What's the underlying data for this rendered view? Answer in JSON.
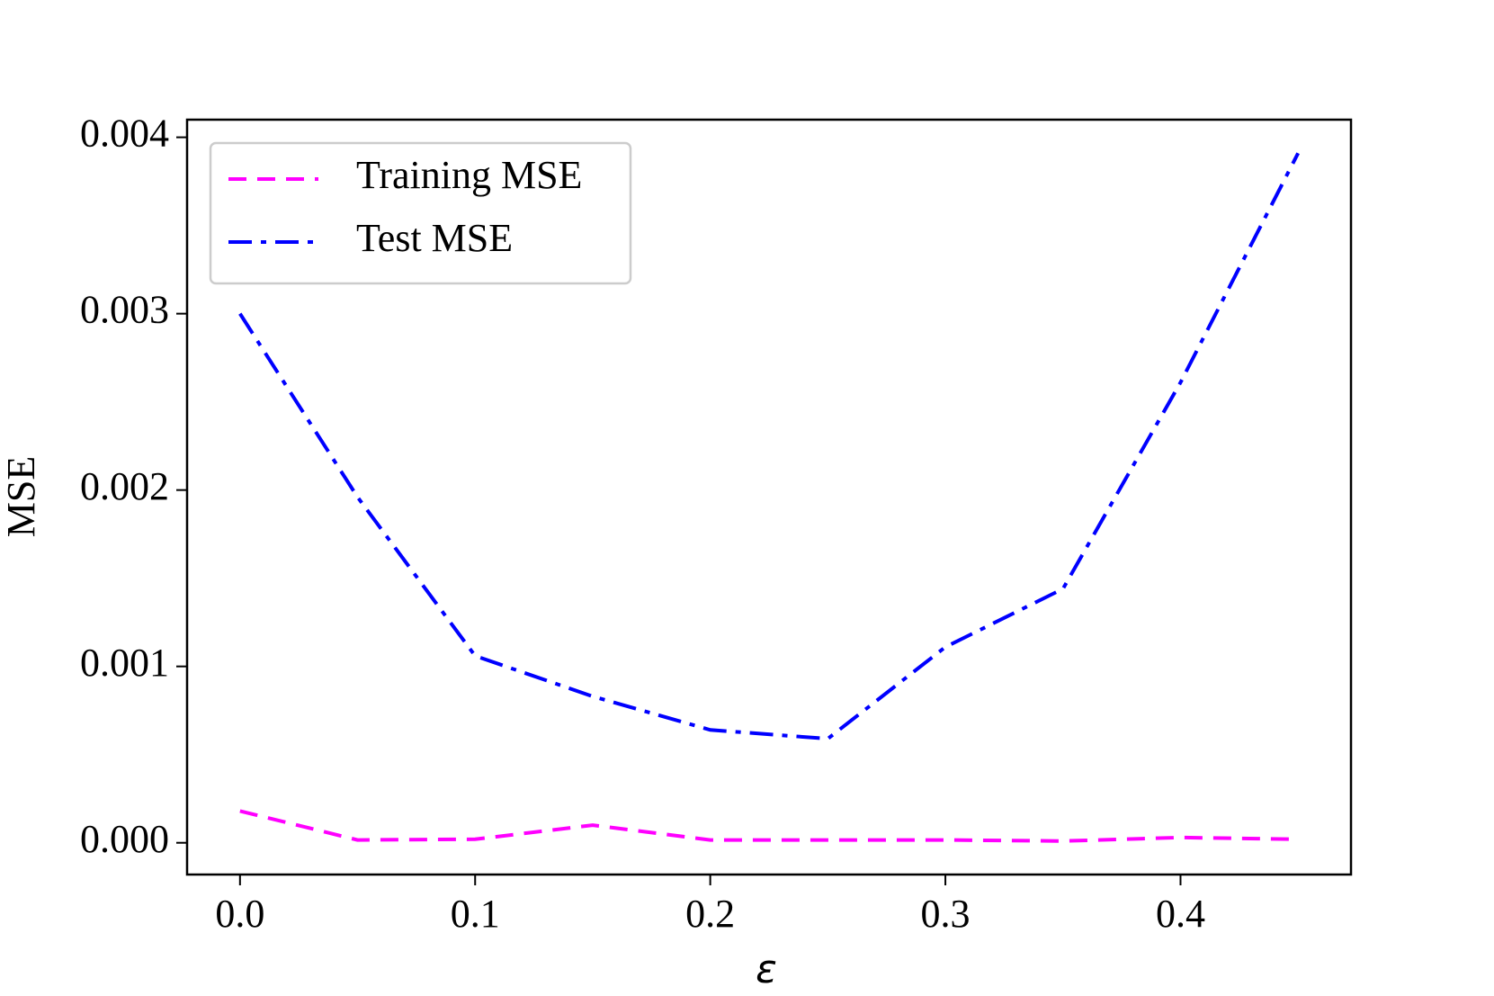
{
  "chart_data": {
    "type": "line",
    "x": [
      0,
      0.05,
      0.1,
      0.15,
      0.2,
      0.25,
      0.3,
      0.35,
      0.4,
      0.45
    ],
    "series": [
      {
        "name": "Training MSE",
        "color": "#ff00ff",
        "dash": "dashed",
        "values": [
          0.00018,
          1.6e-05,
          2e-05,
          0.0001,
          1.6e-05,
          1.6e-05,
          1.6e-05,
          1e-05,
          3e-05,
          2e-05
        ]
      },
      {
        "name": "Test MSE",
        "color": "#0000ff",
        "dash": "dashdot",
        "values": [
          0.003,
          0.00196,
          0.00106,
          0.00083,
          0.00064,
          0.00059,
          0.00111,
          0.00144,
          0.00261,
          0.00391
        ]
      }
    ],
    "xlabel": "ε",
    "ylabel": "MSE",
    "xlim": [
      -0.0225,
      0.4725
    ],
    "xticks": [
      {
        "value": 0,
        "label": "0.0"
      },
      0.1,
      0.2,
      0.3,
      0.4
    ],
    "ylim": [
      -0.00018,
      0.0041
    ],
    "yticks": [
      {
        "value": 0,
        "label": "0.000"
      },
      {
        "value": 0.001,
        "label": "0.001"
      },
      {
        "value": 0.002,
        "label": "0.002"
      },
      {
        "value": 0.003,
        "label": "0.003"
      },
      {
        "value": 0.004,
        "label": "0.004"
      }
    ],
    "legend": "upper left",
    "grid": false
  }
}
